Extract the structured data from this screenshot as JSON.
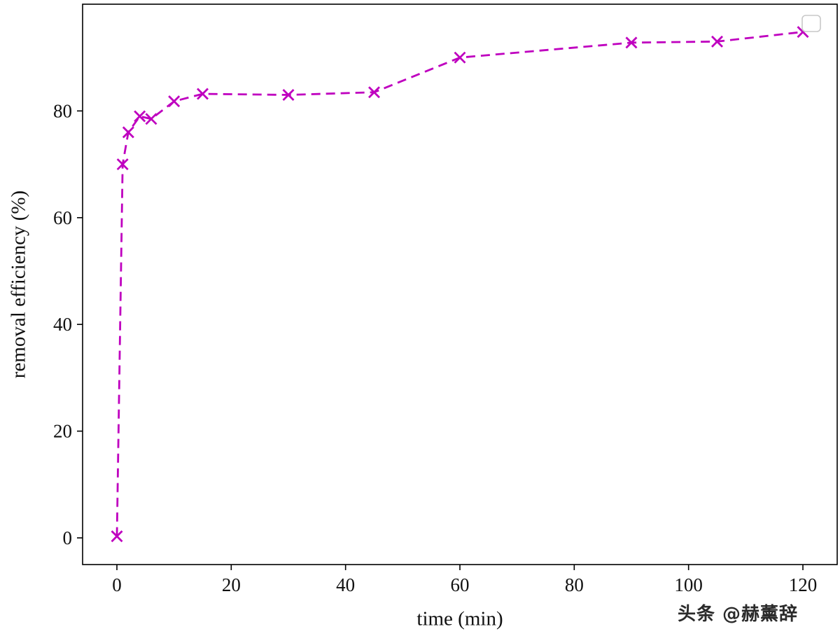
{
  "watermark": {
    "text": "头条 @赫薰辞"
  },
  "legend": {
    "visible": true,
    "entries": []
  },
  "chart_data": {
    "type": "line",
    "title": "",
    "xlabel": "time (min)",
    "ylabel": "removal efficiency (%)",
    "xlim": [
      -6,
      126
    ],
    "ylim": [
      -5,
      100
    ],
    "xticks": [
      0,
      20,
      40,
      60,
      80,
      100,
      120
    ],
    "yticks": [
      0,
      20,
      40,
      60,
      80
    ],
    "grid": false,
    "legend_position": "upper right (empty box)",
    "series": [
      {
        "name": "removal efficiency",
        "color": "#bf00bf",
        "line_style": "dashed",
        "marker": "x",
        "x": [
          0,
          1,
          2,
          4,
          6,
          10,
          15,
          30,
          45,
          60,
          90,
          105,
          120
        ],
        "y": [
          0.3,
          70,
          76,
          79,
          78.5,
          81.8,
          83.2,
          83,
          83.5,
          90,
          92.8,
          93,
          94.8
        ]
      }
    ]
  }
}
